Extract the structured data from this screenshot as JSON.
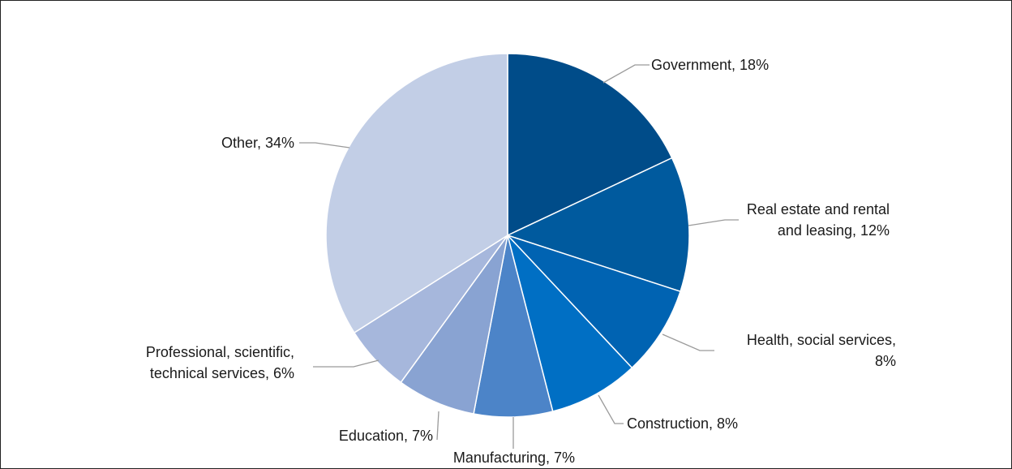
{
  "chart_data": {
    "type": "pie",
    "title": "",
    "start": "12 o'clock",
    "direction": "clockwise",
    "slices": [
      {
        "category": "Government",
        "value": 18,
        "label_lines": [
          "Government, 18%"
        ],
        "color": "#004C89"
      },
      {
        "category": "Real estate and rental and leasing",
        "value": 12,
        "label_lines": [
          "Real estate and rental",
          "and leasing, 12%"
        ],
        "color": "#005A9E"
      },
      {
        "category": "Health, social services",
        "value": 8,
        "label_lines": [
          "Health, social services,",
          "8%"
        ],
        "color": "#0063B2"
      },
      {
        "category": "Construction",
        "value": 8,
        "label_lines": [
          "Construction, 8%"
        ],
        "color": "#006FC4"
      },
      {
        "category": "Manufacturing",
        "value": 7,
        "label_lines": [
          "Manufacturing, 7%"
        ],
        "color": "#4C84C8"
      },
      {
        "category": "Education",
        "value": 7,
        "label_lines": [
          "Education, 7%"
        ],
        "color": "#89A3D2"
      },
      {
        "category": "Professional, scientific, technical services",
        "value": 6,
        "label_lines": [
          "Professional, scientific,",
          "technical services, 6%"
        ],
        "color": "#A6B7DC"
      },
      {
        "category": "Other",
        "value": 34,
        "label_lines": [
          "Other, 34%"
        ],
        "color": "#C2CEE6"
      }
    ]
  }
}
